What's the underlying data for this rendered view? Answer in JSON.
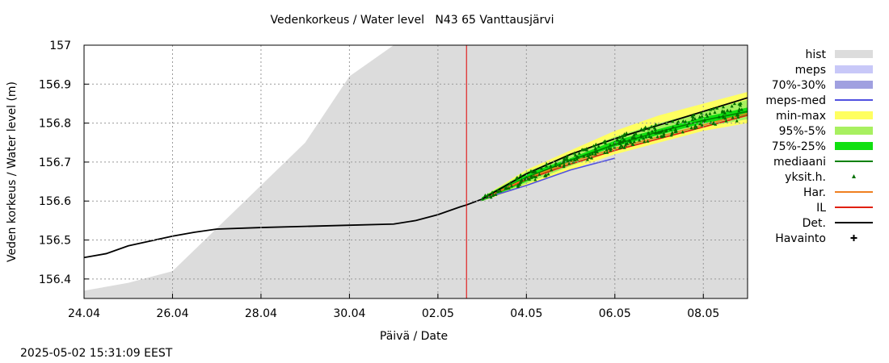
{
  "title": "Vedenkorkeus / Water level   N43 65 Vanttausjärvi",
  "timestamp": "2025-05-02 15:31:09 EEST",
  "chart_data": {
    "type": "line",
    "title": "Vedenkorkeus / Water level   N43 65 Vanttausjärvi",
    "xlabel": "Päivä / Date",
    "ylabel": "Veden korkeus / Water level (m)",
    "xlim": [
      "2025-04-24",
      "2025-05-09"
    ],
    "ylim": [
      156.35,
      157
    ],
    "grid": true,
    "legend_position": "right",
    "x_ticks": [
      "24.04",
      "26.04",
      "28.04",
      "30.04",
      "02.05",
      "04.05",
      "06.05",
      "08.05"
    ],
    "y_ticks": [
      "156.4",
      "156.5",
      "156.6",
      "156.7",
      "156.8",
      "156.9",
      "157"
    ],
    "forecast_start": "2025-05-02 15:30",
    "legend": [
      {
        "label": "hist",
        "color": "#dcdcdc",
        "style": "box"
      },
      {
        "label": "meps",
        "color": "#c8c8f8",
        "style": "box"
      },
      {
        "label": "70%-30%",
        "color": "#a0a0e0",
        "style": "box"
      },
      {
        "label": "meps-med",
        "color": "#5050e0",
        "style": "line"
      },
      {
        "label": "min-max",
        "color": "#ffff60",
        "style": "box"
      },
      {
        "label": "95%-5%",
        "color": "#a8f060",
        "style": "box"
      },
      {
        "label": "75%-25%",
        "color": "#10e010",
        "style": "box"
      },
      {
        "label": "mediaani",
        "color": "#008000",
        "style": "line"
      },
      {
        "label": "yksit.h.",
        "color": "#007000",
        "style": "marker"
      },
      {
        "label": "Har.",
        "color": "#f08020",
        "style": "line"
      },
      {
        "label": "IL",
        "color": "#e02010",
        "style": "line"
      },
      {
        "label": "Det.",
        "color": "#000000",
        "style": "line"
      },
      {
        "label": "Havainto",
        "color": "#000000",
        "style": "plus"
      }
    ],
    "series": [
      {
        "name": "hist",
        "kind": "area_upper",
        "x": [
          "2025-04-24",
          "2025-04-25",
          "2025-04-26",
          "2025-04-27",
          "2025-04-28",
          "2025-04-29",
          "2025-04-30",
          "2025-05-01",
          "2025-05-09"
        ],
        "y": [
          156.37,
          156.39,
          156.42,
          156.53,
          156.64,
          156.75,
          156.92,
          157.0,
          157.0
        ]
      },
      {
        "name": "Det.",
        "kind": "observed",
        "x": [
          "2025-04-24",
          "2025-04-24 12:00",
          "2025-04-25",
          "2025-04-26",
          "2025-04-26 12:00",
          "2025-04-27",
          "2025-04-28",
          "2025-04-29",
          "2025-04-30",
          "2025-05-01",
          "2025-05-01 12:00",
          "2025-05-02",
          "2025-05-02 12:00",
          "2025-05-02 15:30",
          "2025-05-03"
        ],
        "y": [
          156.455,
          156.465,
          156.485,
          156.51,
          156.52,
          156.528,
          156.532,
          156.535,
          156.538,
          156.541,
          156.55,
          156.565,
          156.585,
          156.59,
          156.605
        ]
      },
      {
        "name": "min-max",
        "kind": "band",
        "x": [
          "2025-05-03",
          "2025-05-04",
          "2025-05-05",
          "2025-05-06",
          "2025-05-07",
          "2025-05-08",
          "2025-05-09"
        ],
        "lower": [
          156.6,
          156.64,
          156.68,
          156.72,
          156.75,
          156.78,
          156.8
        ],
        "upper": [
          156.61,
          156.68,
          156.73,
          156.78,
          156.82,
          156.85,
          156.88
        ]
      },
      {
        "name": "95%-5%",
        "kind": "band",
        "x": [
          "2025-05-03",
          "2025-05-04",
          "2025-05-05",
          "2025-05-06",
          "2025-05-07",
          "2025-05-08",
          "2025-05-09"
        ],
        "lower": [
          156.6,
          156.645,
          156.69,
          156.73,
          156.76,
          156.79,
          156.81
        ],
        "upper": [
          156.61,
          156.675,
          156.72,
          156.765,
          156.8,
          156.83,
          156.86
        ]
      },
      {
        "name": "75%-25%",
        "kind": "band",
        "x": [
          "2025-05-03",
          "2025-05-04",
          "2025-05-05",
          "2025-05-06",
          "2025-05-07",
          "2025-05-08",
          "2025-05-09"
        ],
        "lower": [
          156.6,
          156.65,
          156.7,
          156.74,
          156.77,
          156.8,
          156.82
        ],
        "upper": [
          156.61,
          156.67,
          156.71,
          156.755,
          156.785,
          156.815,
          156.84
        ]
      },
      {
        "name": "mediaani",
        "kind": "line",
        "x": [
          "2025-05-03",
          "2025-05-04",
          "2025-05-05",
          "2025-05-06",
          "2025-05-07",
          "2025-05-08",
          "2025-05-09"
        ],
        "y": [
          156.605,
          156.66,
          156.705,
          156.745,
          156.778,
          156.807,
          156.83
        ]
      },
      {
        "name": "meps-med",
        "kind": "line",
        "x": [
          "2025-05-03",
          "2025-05-04",
          "2025-05-05",
          "2025-05-06"
        ],
        "y": [
          156.605,
          156.64,
          156.68,
          156.71
        ]
      },
      {
        "name": "IL",
        "kind": "line",
        "x": [
          "2025-05-03",
          "2025-05-04",
          "2025-05-05",
          "2025-05-06",
          "2025-05-07",
          "2025-05-08",
          "2025-05-09"
        ],
        "y": [
          156.605,
          156.655,
          156.695,
          156.73,
          156.76,
          156.79,
          156.82
        ]
      },
      {
        "name": "Har.",
        "kind": "line",
        "x": [
          "2025-05-03",
          "2025-05-04",
          "2025-05-05",
          "2025-05-06",
          "2025-05-07",
          "2025-05-08",
          "2025-05-09"
        ],
        "y": [
          156.605,
          156.658,
          156.7,
          156.735,
          156.765,
          156.795,
          156.825
        ]
      },
      {
        "name": "Det.",
        "kind": "forecast",
        "x": [
          "2025-05-03",
          "2025-05-04",
          "2025-05-05",
          "2025-05-06",
          "2025-05-07",
          "2025-05-08",
          "2025-05-09"
        ],
        "y": [
          156.605,
          156.67,
          156.72,
          156.76,
          156.795,
          156.83,
          156.865
        ]
      }
    ]
  }
}
